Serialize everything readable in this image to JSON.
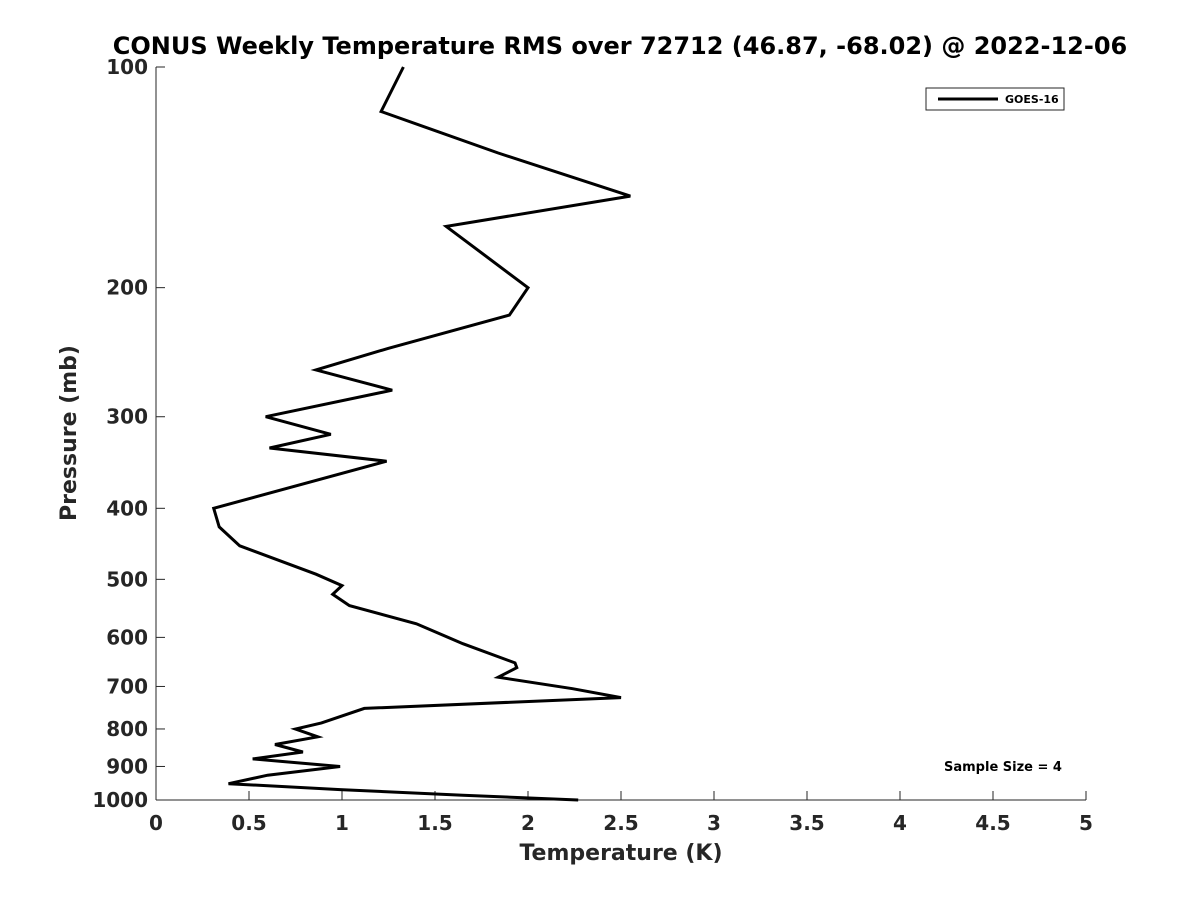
{
  "chart_data": {
    "type": "line",
    "title": "CONUS Weekly Temperature RMS over 72712 (46.87, -68.02) @ 2022-12-06",
    "xlabel": "Temperature (K)",
    "ylabel": "Pressure (mb)",
    "xlim": [
      0,
      5
    ],
    "ylim": [
      1000,
      100
    ],
    "yscale": "log",
    "y_reversed": true,
    "x_ticks": [
      0,
      0.5,
      1,
      1.5,
      2,
      2.5,
      3,
      3.5,
      4,
      4.5,
      5
    ],
    "x_tick_labels": [
      "0",
      "0.5",
      "1",
      "1.5",
      "2",
      "2.5",
      "3",
      "3.5",
      "4",
      "4.5",
      "5"
    ],
    "y_ticks": [
      100,
      200,
      300,
      400,
      500,
      600,
      700,
      800,
      900,
      1000
    ],
    "y_tick_labels": [
      "100",
      "200",
      "300",
      "400",
      "500",
      "600",
      "700",
      "800",
      "900",
      "1000"
    ],
    "grid": false,
    "legend_position": "top-right",
    "series": [
      {
        "name": "GOES-16",
        "color": "#000000",
        "x": [
          1.33,
          1.21,
          1.84,
          2.55,
          1.56,
          2.0,
          1.9,
          1.25,
          0.86,
          1.27,
          0.59,
          0.94,
          0.61,
          1.24,
          0.31,
          0.34,
          0.45,
          0.86,
          1.0,
          0.95,
          1.04,
          1.4,
          1.65,
          1.93,
          1.94,
          1.84,
          2.24,
          2.5,
          1.12,
          0.89,
          0.75,
          0.87,
          0.64,
          0.79,
          0.52,
          0.99,
          0.6,
          0.39,
          0.99,
          1.65,
          2.27
        ],
        "y": [
          100,
          115,
          131,
          150,
          165,
          200,
          218,
          242,
          259,
          276,
          300,
          317,
          331,
          345,
          400,
          424,
          450,
          492,
          510,
          524,
          543,
          575,
          612,
          650,
          660,
          680,
          705,
          725,
          750,
          785,
          800,
          820,
          840,
          860,
          879,
          900,
          925,
          950,
          968,
          985,
          1000
        ]
      }
    ],
    "annotation": "Sample Size = 4"
  }
}
